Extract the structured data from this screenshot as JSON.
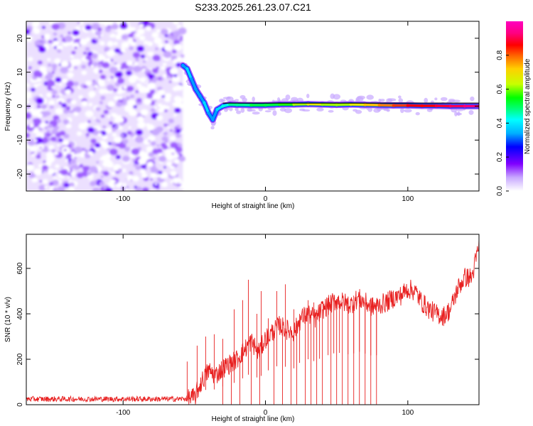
{
  "title": "S233.2025.261.23.07.C21",
  "chart_data": [
    {
      "type": "heatmap",
      "title": "S233.2025.261.23.07.C21",
      "xlabel": "Height of straight line (km)",
      "ylabel": "Frequency (Hz)",
      "xlim": [
        -168,
        150
      ],
      "ylim": [
        -25,
        25
      ],
      "x_ticks": [
        -100,
        0,
        100
      ],
      "y_ticks": [
        -20,
        -10,
        0,
        10,
        20
      ],
      "colorbar": {
        "label": "Normalized spectral amplitude",
        "range": [
          0,
          1
        ],
        "ticks": [
          "0.0",
          "0.2",
          "0.4",
          "0.6",
          "0.8"
        ],
        "colormap": [
          "#ffffff",
          "#c8a8ff",
          "#8000ff",
          "#0000ff",
          "#00b0ff",
          "#00ffff",
          "#00ff80",
          "#00ff00",
          "#c8ff00",
          "#ffd000",
          "#ff6000",
          "#ff0000",
          "#ff0080",
          "#ff00c0"
        ]
      },
      "ridge": {
        "x": [
          -58,
          -55,
          -52,
          -49,
          -46,
          -43,
          -40,
          -37,
          -34,
          -30,
          -25,
          -20,
          -10,
          0,
          10,
          20,
          30,
          40,
          50,
          60,
          70,
          80,
          90,
          100,
          110,
          120,
          130,
          140,
          150
        ],
        "freq_hz": [
          12,
          11,
          8,
          5,
          3,
          1,
          -2,
          -4,
          -1,
          0,
          0.5,
          0.4,
          0.3,
          0.3,
          0.5,
          0.5,
          0.6,
          0.5,
          0.4,
          0.5,
          0.4,
          0.3,
          0.2,
          0.2,
          0.1,
          0.1,
          0.0,
          0.0,
          0.0
        ],
        "amplitude": [
          0.3,
          0.35,
          0.3,
          0.3,
          0.3,
          0.35,
          0.3,
          0.3,
          0.35,
          0.4,
          0.45,
          0.45,
          0.5,
          0.5,
          0.55,
          0.6,
          0.65,
          0.6,
          0.6,
          0.65,
          0.7,
          0.75,
          0.8,
          0.85,
          0.85,
          0.88,
          0.9,
          0.92,
          0.9
        ]
      },
      "noise_region_x": [
        -168,
        -58
      ],
      "reference_line_hz": 0.9
    },
    {
      "type": "line",
      "xlabel": "Height of straight line (km)",
      "ylabel": "SNR (10 * v/v)",
      "xlim": [
        -168,
        150
      ],
      "ylim": [
        0,
        750
      ],
      "x_ticks": [
        -100,
        0,
        100
      ],
      "y_ticks": [
        0,
        200,
        400,
        600
      ],
      "series": [
        {
          "name": "SNR",
          "color": "#e82020",
          "x": [
            -168,
            -140,
            -110,
            -80,
            -60,
            -50,
            -45,
            -40,
            -35,
            -30,
            -25,
            -20,
            -15,
            -10,
            -5,
            0,
            5,
            10,
            15,
            20,
            25,
            30,
            35,
            40,
            45,
            50,
            55,
            60,
            65,
            70,
            75,
            80,
            85,
            90,
            95,
            100,
            105,
            110,
            115,
            120,
            125,
            130,
            135,
            140,
            145,
            150
          ],
          "values": [
            25,
            25,
            25,
            25,
            25,
            30,
            100,
            150,
            130,
            160,
            180,
            200,
            240,
            280,
            230,
            290,
            320,
            350,
            330,
            320,
            380,
            400,
            380,
            420,
            440,
            460,
            450,
            440,
            470,
            450,
            430,
            440,
            450,
            470,
            480,
            510,
            500,
            450,
            420,
            400,
            390,
            420,
            510,
            560,
            560,
            700
          ],
          "spike_peaks": {
            "x": [
              -55,
              -48,
              -42,
              -36,
              -30,
              -22,
              -16,
              -12,
              -6,
              -3,
              2,
              8,
              14,
              20,
              24,
              30,
              34,
              38,
              44,
              48,
              52,
              58,
              62,
              66,
              70,
              74,
              78
            ],
            "values": [
              190,
              260,
              300,
              310,
              290,
              420,
              460,
              550,
              400,
              500,
              380,
              500,
              530,
              420,
              400,
              460,
              450,
              430,
              420,
              470,
              430,
              430,
              480,
              440,
              430,
              470,
              450
            ]
          },
          "dropouts_x": [
            -30,
            -24,
            -18,
            -10,
            -4,
            6,
            12,
            18,
            22,
            28,
            32,
            36,
            40,
            46,
            50,
            54,
            58,
            62,
            66,
            70,
            74,
            78
          ]
        }
      ]
    }
  ]
}
